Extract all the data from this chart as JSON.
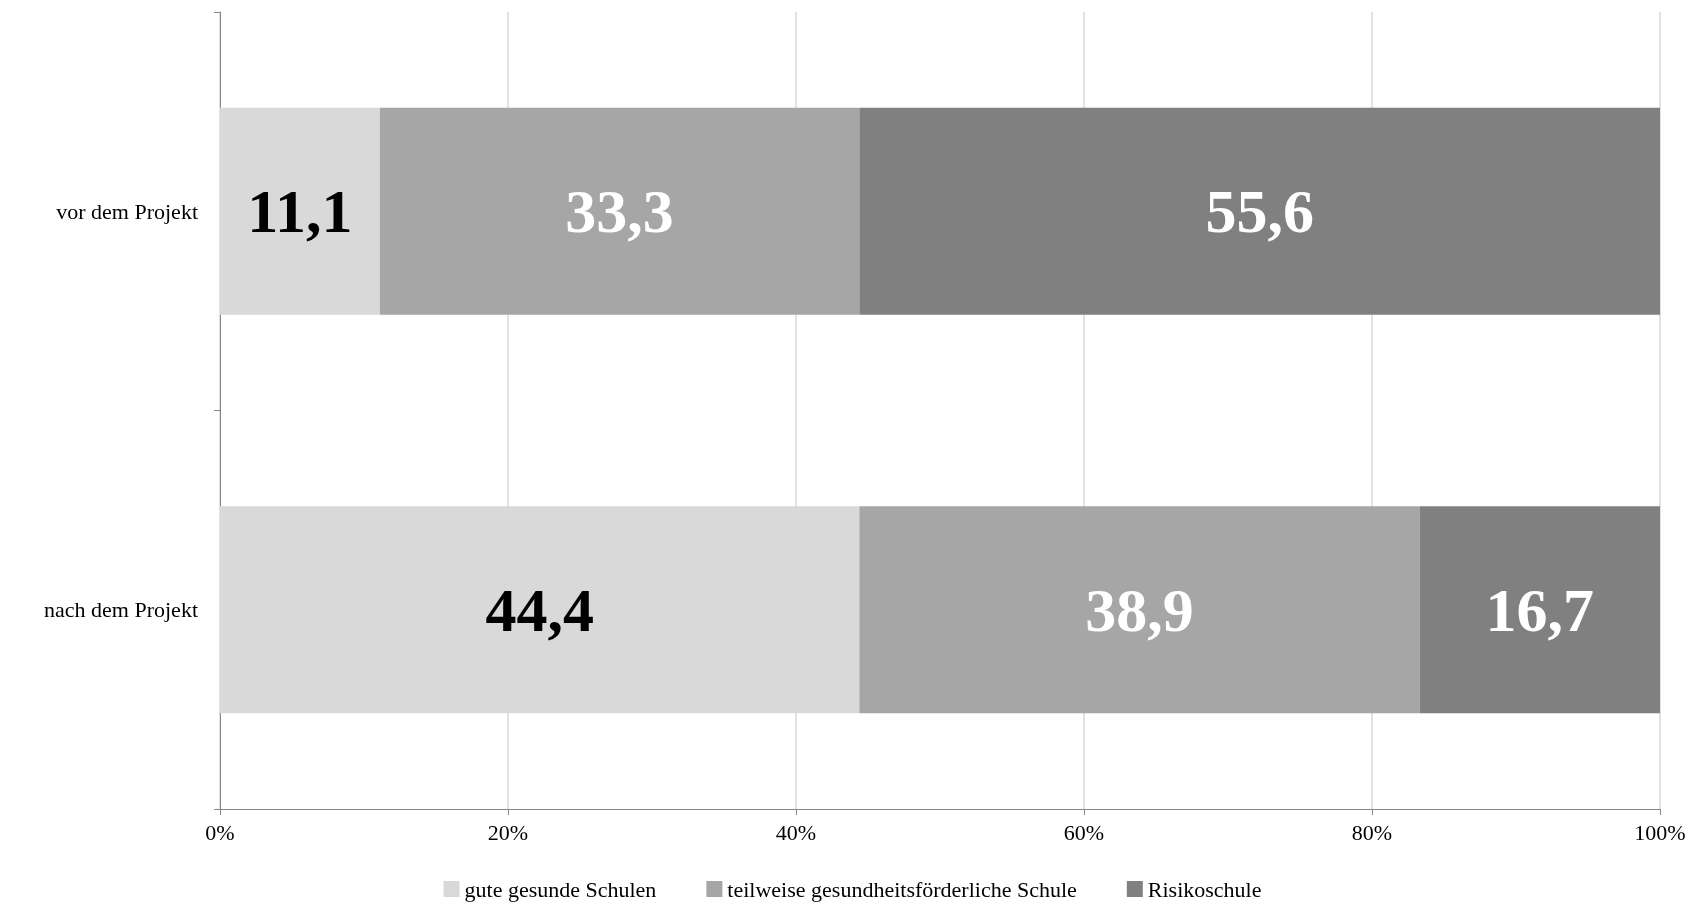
{
  "chart_data": {
    "type": "bar",
    "orientation": "horizontal",
    "stacked": true,
    "categories": [
      "vor dem Projekt",
      "nach dem Projekt"
    ],
    "series": [
      {
        "name": "gute gesunde Schulen",
        "color": "#d9d9d9",
        "values": [
          11.1,
          44.4
        ],
        "value_labels": [
          "11,1",
          "44,4"
        ]
      },
      {
        "name": "teilweise gesundheitsförderliche Schule",
        "color": "#a6a6a6",
        "values": [
          33.3,
          38.9
        ],
        "value_labels": [
          "33,3",
          "38,9"
        ]
      },
      {
        "name": "Risikoschule",
        "color": "#808080",
        "values": [
          55.6,
          16.7
        ],
        "value_labels": [
          "55,6",
          "16,7"
        ]
      }
    ],
    "xlim": [
      0,
      100
    ],
    "xticks": [
      {
        "value": 0,
        "label": "0%"
      },
      {
        "value": 20,
        "label": "20%"
      },
      {
        "value": 40,
        "label": "40%"
      },
      {
        "value": 60,
        "label": "60%"
      },
      {
        "value": 80,
        "label": "80%"
      },
      {
        "value": 100,
        "label": "100%"
      }
    ],
    "grid": "x",
    "legend": "bottom"
  }
}
